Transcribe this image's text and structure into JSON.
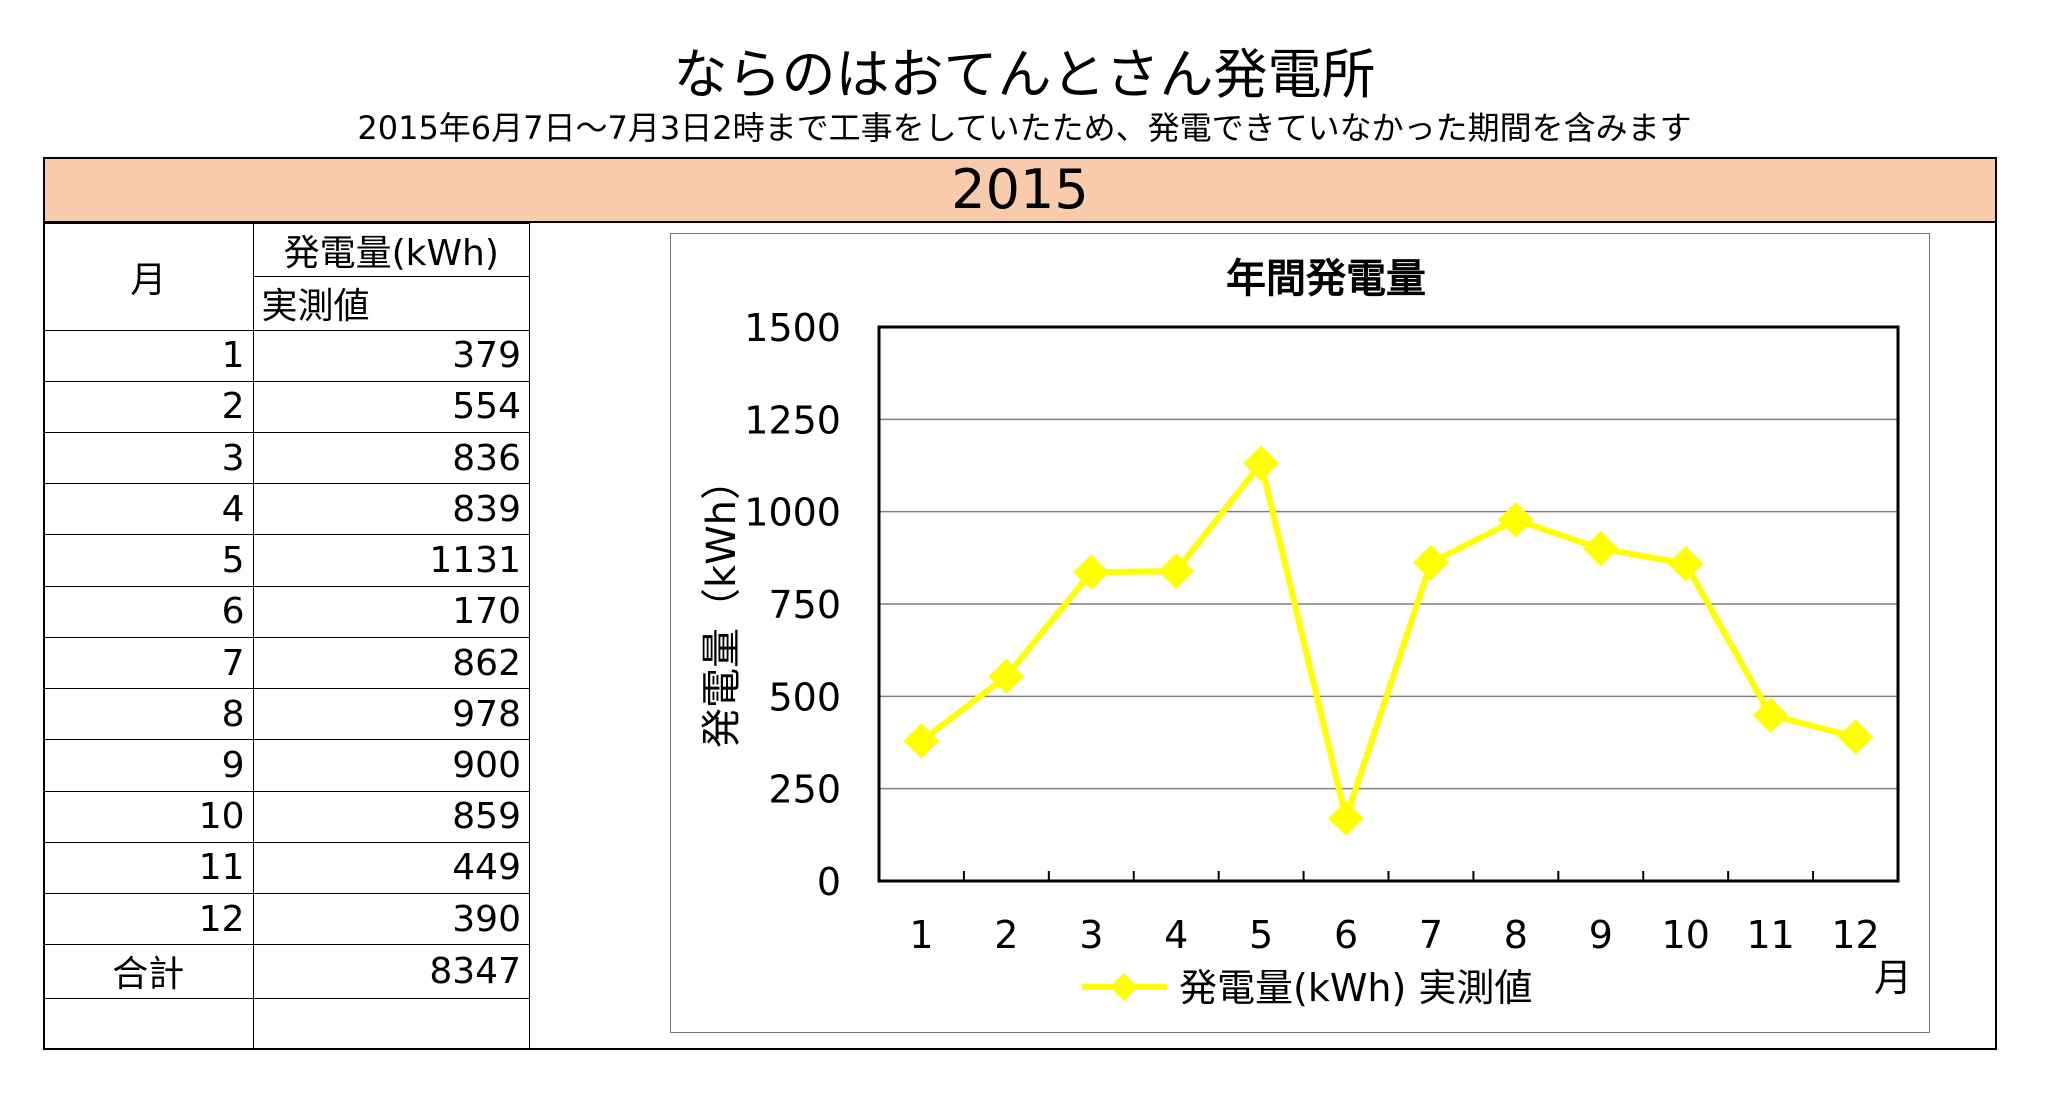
{
  "header": {
    "title": "ならのはおてんとさん発電所",
    "subtitle": "2015年6月7日～7月3日2時まで工事をしていたため、発電できていなかった期間を含みます",
    "year": "2015"
  },
  "table": {
    "month_header": "月",
    "value_header": "発電量(kWh)",
    "value_subheader": "実測値",
    "rows": [
      {
        "month": "1",
        "value": "379"
      },
      {
        "month": "2",
        "value": "554"
      },
      {
        "month": "3",
        "value": "836"
      },
      {
        "month": "4",
        "value": "839"
      },
      {
        "month": "5",
        "value": "1131"
      },
      {
        "month": "6",
        "value": "170"
      },
      {
        "month": "7",
        "value": "862"
      },
      {
        "month": "8",
        "value": "978"
      },
      {
        "month": "9",
        "value": "900"
      },
      {
        "month": "10",
        "value": "859"
      },
      {
        "month": "11",
        "value": "449"
      },
      {
        "month": "12",
        "value": "390"
      }
    ],
    "total_label": "合計",
    "total_value": "8347"
  },
  "chart_data": {
    "type": "line",
    "title": "年間発電量",
    "xlabel": "月",
    "ylabel": "発電量（kWh）",
    "categories": [
      "1",
      "2",
      "3",
      "4",
      "5",
      "6",
      "7",
      "8",
      "9",
      "10",
      "11",
      "12"
    ],
    "ylim": [
      0,
      1500
    ],
    "yticks": [
      0,
      250,
      500,
      750,
      1000,
      1250,
      1500
    ],
    "grid": true,
    "legend_position": "bottom",
    "series": [
      {
        "name": "発電量(kWh) 実測値",
        "values": [
          379,
          554,
          836,
          839,
          1131,
          170,
          862,
          978,
          900,
          859,
          449,
          390
        ],
        "color": "#ffff00",
        "marker": "diamond"
      }
    ]
  }
}
